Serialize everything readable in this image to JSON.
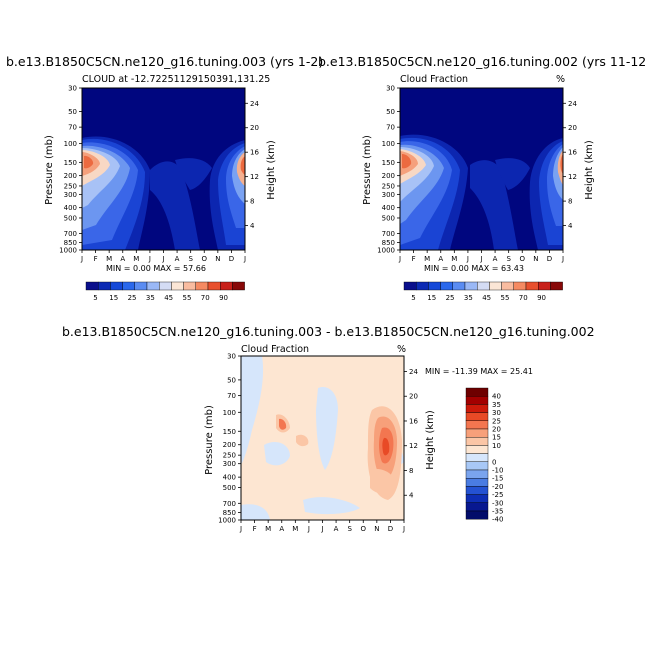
{
  "chart_data": [
    {
      "type": "heatmap",
      "title": "b.e13.B1850C5CN.ne120_g16.tuning.003 (yrs 1-2)",
      "subtitle_left": "CLOUD at -12.72251129150391,131.25",
      "subtitle_right": "%",
      "xlabel": "",
      "ylabel": "Pressure (mb)",
      "ylabel_right": "Height (km)",
      "x_ticks": [
        "J",
        "F",
        "M",
        "A",
        "M",
        "J",
        "J",
        "A",
        "S",
        "O",
        "N",
        "D",
        "J"
      ],
      "y_ticks": [
        "30",
        "50",
        "70",
        "100",
        "150",
        "200",
        "250",
        "300",
        "400",
        "500",
        "700",
        "850",
        "1000"
      ],
      "y_ticks_right": [
        "24",
        "20",
        "16",
        "12",
        "8",
        "4"
      ],
      "stats": "MIN =    0.00 MAX =   57.66",
      "colorbar_labels": [
        "5",
        "15",
        "25",
        "35",
        "45",
        "55",
        "70",
        "90"
      ]
    },
    {
      "type": "heatmap",
      "title": "b.e13.B1850C5CN.ne120_g16.tuning.002 (yrs 11-12",
      "subtitle_left": "Cloud Fraction",
      "subtitle_right": "%",
      "xlabel": "",
      "ylabel": "Pressure (mb)",
      "ylabel_right": "Height (km)",
      "x_ticks": [
        "J",
        "F",
        "M",
        "A",
        "M",
        "J",
        "J",
        "A",
        "S",
        "O",
        "N",
        "D",
        "J"
      ],
      "y_ticks": [
        "30",
        "50",
        "70",
        "100",
        "150",
        "200",
        "250",
        "300",
        "400",
        "500",
        "700",
        "850",
        "1000"
      ],
      "y_ticks_right": [
        "24",
        "20",
        "16",
        "12",
        "8",
        "4"
      ],
      "stats": "MIN =    0.00 MAX =   63.43",
      "colorbar_labels": [
        "5",
        "15",
        "25",
        "35",
        "45",
        "55",
        "70",
        "90"
      ]
    },
    {
      "type": "heatmap",
      "title": "b.e13.B1850C5CN.ne120_g16.tuning.003 - b.e13.B1850C5CN.ne120_g16.tuning.002",
      "subtitle_left": "Cloud Fraction",
      "subtitle_right": "%",
      "xlabel": "",
      "ylabel": "Pressure (mb)",
      "ylabel_right": "Height (km)",
      "x_ticks": [
        "J",
        "F",
        "M",
        "A",
        "M",
        "J",
        "J",
        "A",
        "S",
        "O",
        "N",
        "D",
        "J"
      ],
      "y_ticks": [
        "30",
        "50",
        "70",
        "100",
        "150",
        "200",
        "250",
        "300",
        "400",
        "500",
        "700",
        "850",
        "1000"
      ],
      "y_ticks_right": [
        "24",
        "20",
        "16",
        "12",
        "8",
        "4"
      ],
      "stats": "MIN = -11.39 MAX =  25.41",
      "colorbar_labels": [
        "40",
        "35",
        "30",
        "25",
        "20",
        "15",
        "10",
        "0",
        "-10",
        "-15",
        "-20",
        "-25",
        "-30",
        "-35",
        "-40"
      ]
    }
  ],
  "colors": {
    "cloud_scale": [
      "#0a0f8c",
      "#0c2ab4",
      "#1448d8",
      "#2a68ec",
      "#5a8cf2",
      "#9ab8f6",
      "#d4dcf4",
      "#fbe6d6",
      "#f9bca0",
      "#f58a62",
      "#e8502e",
      "#c8201a",
      "#880808"
    ],
    "diff_scale": [
      "#6e0000",
      "#a30000",
      "#cc1a0a",
      "#e84a26",
      "#f37650",
      "#f7a07a",
      "#fbc6a6",
      "#fde6d2",
      "#d6e6fb",
      "#a8c8f6",
      "#7aa4ee",
      "#4a7ce2",
      "#2452d2",
      "#0e2eb4",
      "#081890",
      "#020c6a"
    ],
    "dark_blue": "#000c8a",
    "peach": "#fde6d2",
    "light_blue": "#d6e6fb"
  }
}
